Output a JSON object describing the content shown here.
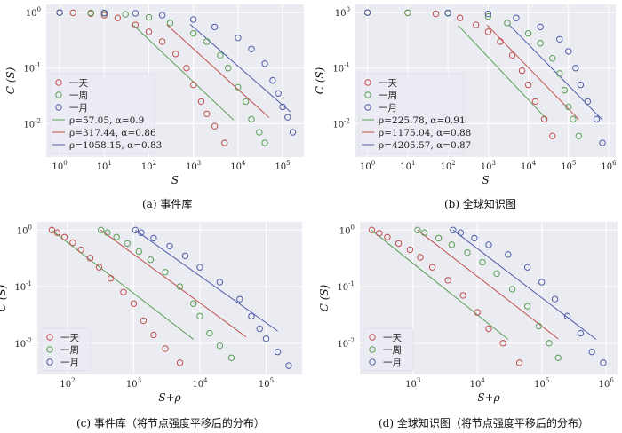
{
  "colors": {
    "day": "#c0504d",
    "week": "#5aa055",
    "month": "#4f5fa8",
    "plot_bg": "#ebebf2",
    "grid": "#ffffff"
  },
  "chart_data": [
    {
      "id": "a",
      "type": "scatter",
      "caption": "(a) 事件库",
      "xlabel": "S",
      "ylabel": "C (S)",
      "xscale": "log",
      "yscale": "log",
      "xlim": [
        0.5,
        300000
      ],
      "ylim": [
        0.0025,
        1.4
      ],
      "xticks": [
        {
          "v": 1,
          "b": "10",
          "e": "0"
        },
        {
          "v": 10,
          "b": "10",
          "e": "1"
        },
        {
          "v": 100,
          "b": "10",
          "e": "2"
        },
        {
          "v": 1000,
          "b": "10",
          "e": "3"
        },
        {
          "v": 10000,
          "b": "10",
          "e": "4"
        },
        {
          "v": 100000,
          "b": "10",
          "e": "5"
        }
      ],
      "yticks": [
        {
          "v": 1,
          "b": "10",
          "e": "0"
        },
        {
          "v": 0.1,
          "b": "10",
          "e": "-1"
        },
        {
          "v": 0.01,
          "b": "10",
          "e": "-2"
        }
      ],
      "grid": true,
      "legend_position": "bottom-left",
      "series": [
        {
          "name": "一天",
          "color": "#c0504d",
          "rho": 57.05,
          "alpha": 0.9,
          "points": [
            [
              1,
              1.0
            ],
            [
              2,
              0.99
            ],
            [
              5,
              0.96
            ],
            [
              10,
              0.9
            ],
            [
              20,
              0.8
            ],
            [
              50,
              0.6
            ],
            [
              100,
              0.45
            ],
            [
              200,
              0.3
            ],
            [
              400,
              0.18
            ],
            [
              700,
              0.1
            ],
            [
              1000,
              0.05
            ],
            [
              1500,
              0.025
            ],
            [
              2000,
              0.015
            ],
            [
              3000,
              0.009
            ],
            [
              5000,
              0.0045
            ]
          ]
        },
        {
          "name": "一周",
          "color": "#5aa055",
          "rho": 317.44,
          "alpha": 0.86,
          "points": [
            [
              1,
              1.0
            ],
            [
              5,
              0.99
            ],
            [
              10,
              0.97
            ],
            [
              30,
              0.93
            ],
            [
              100,
              0.82
            ],
            [
              300,
              0.65
            ],
            [
              1000,
              0.42
            ],
            [
              2000,
              0.3
            ],
            [
              4000,
              0.17
            ],
            [
              6000,
              0.1
            ],
            [
              10000,
              0.045
            ],
            [
              15000,
              0.025
            ],
            [
              20000,
              0.012
            ],
            [
              30000,
              0.007
            ],
            [
              40000,
              0.0045
            ]
          ]
        },
        {
          "name": "一月",
          "color": "#4f5fa8",
          "rho": 1058.15,
          "alpha": 0.83,
          "points": [
            [
              1,
              1.0
            ],
            [
              10,
              0.99
            ],
            [
              50,
              0.97
            ],
            [
              200,
              0.9
            ],
            [
              1000,
              0.75
            ],
            [
              3000,
              0.55
            ],
            [
              10000,
              0.35
            ],
            [
              20000,
              0.22
            ],
            [
              40000,
              0.12
            ],
            [
              60000,
              0.06
            ],
            [
              80000,
              0.035
            ],
            [
              100000,
              0.02
            ],
            [
              130000,
              0.013
            ],
            [
              170000,
              0.007
            ]
          ]
        }
      ],
      "fits": [
        {
          "label": "ρ=57.05, α=0.9",
          "color": "#5aa055",
          "rho": 57.05,
          "alpha": 0.9,
          "x_end": 8000
        },
        {
          "label": "ρ=317.44, α=0.86",
          "color": "#c0504d",
          "rho": 317.44,
          "alpha": 0.86,
          "x_end": 50000
        },
        {
          "label": "ρ=1058.15, α=0.83",
          "color": "#4f5fa8",
          "rho": 1058.15,
          "alpha": 0.83,
          "x_end": 150000
        }
      ]
    },
    {
      "id": "b",
      "type": "scatter",
      "caption": "(b) 全球知识图",
      "xlabel": "S",
      "ylabel": "C (S)",
      "xscale": "log",
      "yscale": "log",
      "xlim": [
        0.5,
        1500000
      ],
      "ylim": [
        0.0025,
        1.4
      ],
      "xticks": [
        {
          "v": 1,
          "b": "10",
          "e": "0"
        },
        {
          "v": 10,
          "b": "10",
          "e": "1"
        },
        {
          "v": 100,
          "b": "10",
          "e": "2"
        },
        {
          "v": 1000,
          "b": "10",
          "e": "3"
        },
        {
          "v": 10000,
          "b": "10",
          "e": "4"
        },
        {
          "v": 100000,
          "b": "10",
          "e": "5"
        },
        {
          "v": 1000000,
          "b": "10",
          "e": "6"
        }
      ],
      "yticks": [
        {
          "v": 1,
          "b": "10",
          "e": "0"
        },
        {
          "v": 0.1,
          "b": "10",
          "e": "-1"
        },
        {
          "v": 0.01,
          "b": "10",
          "e": "-2"
        }
      ],
      "grid": true,
      "legend_position": "bottom-left",
      "series": [
        {
          "name": "一天",
          "color": "#c0504d",
          "rho": 225.78,
          "alpha": 0.91,
          "points": [
            [
              1,
              1.0
            ],
            [
              10,
              0.99
            ],
            [
              50,
              0.95
            ],
            [
              200,
              0.8
            ],
            [
              500,
              0.6
            ],
            [
              1000,
              0.45
            ],
            [
              2000,
              0.3
            ],
            [
              4000,
              0.17
            ],
            [
              7000,
              0.09
            ],
            [
              10000,
              0.05
            ],
            [
              15000,
              0.025
            ],
            [
              25000,
              0.012
            ],
            [
              40000,
              0.006
            ]
          ]
        },
        {
          "name": "一周",
          "color": "#5aa055",
          "rho": 1175.04,
          "alpha": 0.88,
          "points": [
            [
              1,
              1.0
            ],
            [
              10,
              0.995
            ],
            [
              100,
              0.97
            ],
            [
              1000,
              0.85
            ],
            [
              3000,
              0.65
            ],
            [
              10000,
              0.42
            ],
            [
              20000,
              0.28
            ],
            [
              40000,
              0.15
            ],
            [
              60000,
              0.08
            ],
            [
              80000,
              0.04
            ],
            [
              100000,
              0.02
            ],
            [
              130000,
              0.012
            ],
            [
              180000,
              0.006
            ]
          ]
        },
        {
          "name": "一月",
          "color": "#4f5fa8",
          "rho": 4205.57,
          "alpha": 0.87,
          "points": [
            [
              1,
              1.0
            ],
            [
              100,
              0.99
            ],
            [
              1000,
              0.95
            ],
            [
              5000,
              0.8
            ],
            [
              20000,
              0.55
            ],
            [
              60000,
              0.33
            ],
            [
              100000,
              0.2
            ],
            [
              150000,
              0.1
            ],
            [
              200000,
              0.05
            ],
            [
              300000,
              0.025
            ],
            [
              500000,
              0.012
            ],
            [
              700000,
              0.0045
            ]
          ]
        }
      ],
      "fits": [
        {
          "label": "ρ=225.78, α=0.91",
          "color": "#5aa055",
          "rho": 225.78,
          "alpha": 0.91,
          "x_end": 30000
        },
        {
          "label": "ρ=1175.04, α=0.88",
          "color": "#c0504d",
          "rho": 1175.04,
          "alpha": 0.88,
          "x_end": 180000
        },
        {
          "label": "ρ=4205.57, α=0.87",
          "color": "#4f5fa8",
          "rho": 4205.57,
          "alpha": 0.87,
          "x_end": 700000
        }
      ]
    },
    {
      "id": "c",
      "type": "scatter",
      "caption": "(c) 事件库（将节点强度平移后的分布）",
      "xlabel": "S+ρ",
      "ylabel": "C (S)",
      "xscale": "log",
      "yscale": "log",
      "xlim": [
        35,
        350000
      ],
      "ylim": [
        0.0028,
        1.4
      ],
      "xticks": [
        {
          "v": 100,
          "b": "10",
          "e": "2"
        },
        {
          "v": 1000,
          "b": "10",
          "e": "3"
        },
        {
          "v": 10000,
          "b": "10",
          "e": "4"
        },
        {
          "v": 100000,
          "b": "10",
          "e": "5"
        }
      ],
      "yticks": [
        {
          "v": 1,
          "b": "10",
          "e": "0"
        },
        {
          "v": 0.1,
          "b": "10",
          "e": "-1"
        },
        {
          "v": 0.01,
          "b": "10",
          "e": "-2"
        }
      ],
      "grid": true,
      "legend_position": "bottom-left",
      "series": [
        {
          "name": "一天",
          "color": "#c0504d",
          "points": [
            [
              58,
              1.0
            ],
            [
              70,
              0.9
            ],
            [
              90,
              0.75
            ],
            [
              120,
              0.6
            ],
            [
              160,
              0.45
            ],
            [
              220,
              0.32
            ],
            [
              300,
              0.22
            ],
            [
              450,
              0.14
            ],
            [
              700,
              0.08
            ],
            [
              1000,
              0.05
            ],
            [
              1400,
              0.025
            ],
            [
              2000,
              0.014
            ],
            [
              3000,
              0.008
            ],
            [
              5000,
              0.0045
            ]
          ]
        },
        {
          "name": "一周",
          "color": "#5aa055",
          "points": [
            [
              320,
              1.0
            ],
            [
              400,
              0.9
            ],
            [
              550,
              0.75
            ],
            [
              800,
              0.58
            ],
            [
              1200,
              0.42
            ],
            [
              1800,
              0.3
            ],
            [
              3000,
              0.18
            ],
            [
              5000,
              0.1
            ],
            [
              8000,
              0.05
            ],
            [
              10000,
              0.03
            ],
            [
              14000,
              0.015
            ],
            [
              20000,
              0.009
            ],
            [
              30000,
              0.0055
            ]
          ]
        },
        {
          "name": "一月",
          "color": "#4f5fa8",
          "points": [
            [
              1060,
              1.0
            ],
            [
              1300,
              0.9
            ],
            [
              2000,
              0.72
            ],
            [
              3500,
              0.52
            ],
            [
              6000,
              0.35
            ],
            [
              10000,
              0.22
            ],
            [
              20000,
              0.12
            ],
            [
              40000,
              0.06
            ],
            [
              60000,
              0.03
            ],
            [
              80000,
              0.018
            ],
            [
              100000,
              0.012
            ],
            [
              150000,
              0.007
            ],
            [
              220000,
              0.004
            ]
          ]
        }
      ],
      "fits": [
        {
          "color": "#5aa055",
          "rho": 57.05,
          "alpha": 0.9,
          "x_end": 8000
        },
        {
          "color": "#c0504d",
          "rho": 317.44,
          "alpha": 0.86,
          "x_end": 50000
        },
        {
          "color": "#4f5fa8",
          "rho": 1058.15,
          "alpha": 0.83,
          "x_end": 150000
        }
      ]
    },
    {
      "id": "d",
      "type": "scatter",
      "caption": "(d) 全球知识图（将节点强度平移后的分布）",
      "xlabel": "S+ρ",
      "ylabel": "C (S)",
      "xscale": "log",
      "yscale": "log",
      "xlim": [
        150,
        1500000
      ],
      "ylim": [
        0.0028,
        1.4
      ],
      "xticks": [
        {
          "v": 1000,
          "b": "10",
          "e": "3"
        },
        {
          "v": 10000,
          "b": "10",
          "e": "4"
        },
        {
          "v": 100000,
          "b": "10",
          "e": "5"
        },
        {
          "v": 1000000,
          "b": "10",
          "e": "6"
        }
      ],
      "yticks": [
        {
          "v": 1,
          "b": "10",
          "e": "0"
        },
        {
          "v": 0.1,
          "b": "10",
          "e": "-1"
        },
        {
          "v": 0.01,
          "b": "10",
          "e": "-2"
        }
      ],
      "grid": true,
      "legend_position": "bottom-left",
      "series": [
        {
          "name": "一天",
          "color": "#c0504d",
          "points": [
            [
              230,
              1.0
            ],
            [
              300,
              0.88
            ],
            [
              400,
              0.75
            ],
            [
              600,
              0.58
            ],
            [
              900,
              0.45
            ],
            [
              1300,
              0.33
            ],
            [
              2000,
              0.22
            ],
            [
              3500,
              0.13
            ],
            [
              6000,
              0.07
            ],
            [
              10000,
              0.035
            ],
            [
              15000,
              0.018
            ],
            [
              25000,
              0.01
            ],
            [
              45000,
              0.0045
            ]
          ]
        },
        {
          "name": "一周",
          "color": "#5aa055",
          "points": [
            [
              1180,
              1.0
            ],
            [
              1500,
              0.9
            ],
            [
              2500,
              0.72
            ],
            [
              4000,
              0.55
            ],
            [
              7000,
              0.4
            ],
            [
              12000,
              0.27
            ],
            [
              20000,
              0.17
            ],
            [
              35000,
              0.09
            ],
            [
              60000,
              0.045
            ],
            [
              90000,
              0.02
            ],
            [
              130000,
              0.01
            ],
            [
              180000,
              0.0055
            ]
          ]
        },
        {
          "name": "一月",
          "color": "#4f5fa8",
          "points": [
            [
              4200,
              1.0
            ],
            [
              5500,
              0.9
            ],
            [
              9000,
              0.72
            ],
            [
              15000,
              0.55
            ],
            [
              30000,
              0.37
            ],
            [
              60000,
              0.22
            ],
            [
              100000,
              0.12
            ],
            [
              160000,
              0.06
            ],
            [
              250000,
              0.03
            ],
            [
              400000,
              0.015
            ],
            [
              600000,
              0.007
            ],
            [
              900000,
              0.0045
            ]
          ]
        }
      ],
      "fits": [
        {
          "color": "#5aa055",
          "rho": 225.78,
          "alpha": 0.91,
          "x_end": 30000
        },
        {
          "color": "#c0504d",
          "rho": 1175.04,
          "alpha": 0.88,
          "x_end": 180000
        },
        {
          "color": "#4f5fa8",
          "rho": 4205.57,
          "alpha": 0.87,
          "x_end": 700000
        }
      ]
    }
  ]
}
